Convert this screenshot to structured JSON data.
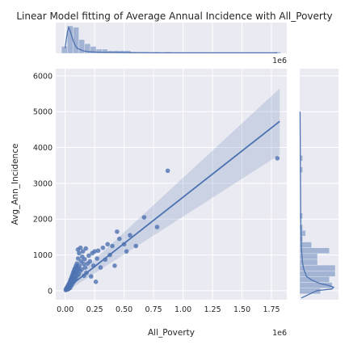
{
  "chart_data": {
    "type": "scatter",
    "title": "Linear Model fitting of Average Annual Incidence with All_Poverty",
    "xlabel": "All_Poverty",
    "ylabel": "Avg_Ann_Incidence",
    "x_scale_label": "1e6",
    "top_scale_label": "1e6",
    "xlim": [
      -0.08,
      1.88
    ],
    "ylim": [
      -250,
      6200
    ],
    "xticks": [
      0.0,
      0.25,
      0.5,
      0.75,
      1.0,
      1.25,
      1.5,
      1.75
    ],
    "xtick_labels": [
      "0.00",
      "0.25",
      "0.50",
      "0.75",
      "1.00",
      "1.25",
      "1.50",
      "1.75"
    ],
    "yticks": [
      0,
      1000,
      2000,
      3000,
      4000,
      5000,
      6000
    ],
    "ytick_labels": [
      "0",
      "1000",
      "2000",
      "3000",
      "4000",
      "5000",
      "6000"
    ],
    "regression": {
      "x": [
        0.0,
        1.82
      ],
      "y": [
        30,
        4730
      ],
      "ci_lower": [
        -40,
        3800
      ],
      "ci_upper": [
        110,
        5650
      ]
    },
    "points": [
      {
        "x": 0.005,
        "y": 20
      },
      {
        "x": 0.008,
        "y": 45
      },
      {
        "x": 0.01,
        "y": 60
      },
      {
        "x": 0.012,
        "y": 35
      },
      {
        "x": 0.015,
        "y": 90
      },
      {
        "x": 0.018,
        "y": 70
      },
      {
        "x": 0.02,
        "y": 120
      },
      {
        "x": 0.022,
        "y": 40
      },
      {
        "x": 0.025,
        "y": 150
      },
      {
        "x": 0.028,
        "y": 100
      },
      {
        "x": 0.03,
        "y": 180
      },
      {
        "x": 0.032,
        "y": 60
      },
      {
        "x": 0.035,
        "y": 210
      },
      {
        "x": 0.038,
        "y": 130
      },
      {
        "x": 0.04,
        "y": 250
      },
      {
        "x": 0.042,
        "y": 80
      },
      {
        "x": 0.045,
        "y": 300
      },
      {
        "x": 0.048,
        "y": 190
      },
      {
        "x": 0.05,
        "y": 330
      },
      {
        "x": 0.052,
        "y": 140
      },
      {
        "x": 0.055,
        "y": 380
      },
      {
        "x": 0.058,
        "y": 260
      },
      {
        "x": 0.06,
        "y": 420
      },
      {
        "x": 0.062,
        "y": 200
      },
      {
        "x": 0.065,
        "y": 470
      },
      {
        "x": 0.068,
        "y": 320
      },
      {
        "x": 0.07,
        "y": 520
      },
      {
        "x": 0.072,
        "y": 250
      },
      {
        "x": 0.075,
        "y": 560
      },
      {
        "x": 0.078,
        "y": 400
      },
      {
        "x": 0.08,
        "y": 610
      },
      {
        "x": 0.082,
        "y": 300
      },
      {
        "x": 0.085,
        "y": 480
      },
      {
        "x": 0.088,
        "y": 650
      },
      {
        "x": 0.09,
        "y": 350
      },
      {
        "x": 0.092,
        "y": 700
      },
      {
        "x": 0.095,
        "y": 520
      },
      {
        "x": 0.1,
        "y": 760
      },
      {
        "x": 0.102,
        "y": 420
      },
      {
        "x": 0.105,
        "y": 580
      },
      {
        "x": 0.108,
        "y": 1150
      },
      {
        "x": 0.11,
        "y": 900
      },
      {
        "x": 0.112,
        "y": 640
      },
      {
        "x": 0.115,
        "y": 460
      },
      {
        "x": 0.118,
        "y": 1050
      },
      {
        "x": 0.12,
        "y": 700
      },
      {
        "x": 0.125,
        "y": 540
      },
      {
        "x": 0.13,
        "y": 1200
      },
      {
        "x": 0.135,
        "y": 820
      },
      {
        "x": 0.14,
        "y": 600
      },
      {
        "x": 0.145,
        "y": 950
      },
      {
        "x": 0.15,
        "y": 1100
      },
      {
        "x": 0.155,
        "y": 750
      },
      {
        "x": 0.16,
        "y": 420
      },
      {
        "x": 0.165,
        "y": 880
      },
      {
        "x": 0.17,
        "y": 650
      },
      {
        "x": 0.175,
        "y": 1180
      },
      {
        "x": 0.18,
        "y": 500
      },
      {
        "x": 0.19,
        "y": 760
      },
      {
        "x": 0.2,
        "y": 980
      },
      {
        "x": 0.21,
        "y": 820
      },
      {
        "x": 0.22,
        "y": 400
      },
      {
        "x": 0.23,
        "y": 1050
      },
      {
        "x": 0.24,
        "y": 700
      },
      {
        "x": 0.25,
        "y": 1100
      },
      {
        "x": 0.26,
        "y": 250
      },
      {
        "x": 0.27,
        "y": 900
      },
      {
        "x": 0.28,
        "y": 1120
      },
      {
        "x": 0.3,
        "y": 650
      },
      {
        "x": 0.32,
        "y": 1200
      },
      {
        "x": 0.34,
        "y": 870
      },
      {
        "x": 0.36,
        "y": 1300
      },
      {
        "x": 0.38,
        "y": 1000
      },
      {
        "x": 0.4,
        "y": 1250
      },
      {
        "x": 0.42,
        "y": 700
      },
      {
        "x": 0.44,
        "y": 1650
      },
      {
        "x": 0.46,
        "y": 1450
      },
      {
        "x": 0.5,
        "y": 1300
      },
      {
        "x": 0.52,
        "y": 1100
      },
      {
        "x": 0.55,
        "y": 1550
      },
      {
        "x": 0.6,
        "y": 1250
      },
      {
        "x": 0.67,
        "y": 2050
      },
      {
        "x": 0.78,
        "y": 1780
      },
      {
        "x": 0.87,
        "y": 3350
      },
      {
        "x": 1.8,
        "y": 3700
      }
    ],
    "top_marginal_density": {
      "x": [
        0.0,
        0.01,
        0.02,
        0.03,
        0.04,
        0.06,
        0.08,
        0.1,
        0.15,
        0.2,
        0.3,
        0.5,
        0.8,
        1.2,
        1.8
      ],
      "density": [
        0.2,
        0.55,
        0.85,
        1.0,
        0.9,
        0.6,
        0.35,
        0.2,
        0.1,
        0.06,
        0.04,
        0.03,
        0.02,
        0.02,
        0.02
      ]
    },
    "right_marginal_density": {
      "y": [
        -200,
        0,
        50,
        100,
        150,
        200,
        300,
        400,
        600,
        800,
        1200,
        2000,
        3500,
        5000
      ],
      "density": [
        0.05,
        0.5,
        0.95,
        1.0,
        0.85,
        0.6,
        0.35,
        0.2,
        0.12,
        0.08,
        0.05,
        0.03,
        0.02,
        0.01
      ]
    }
  }
}
